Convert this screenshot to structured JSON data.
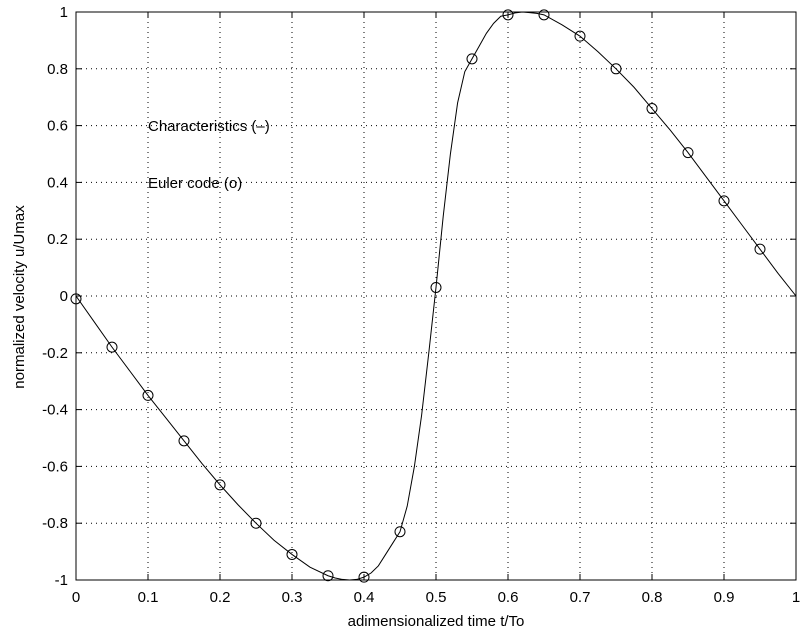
{
  "chart_data": {
    "type": "line",
    "title": "",
    "xlabel": "adimensionalized time t/To",
    "ylabel": "normalized velocity u/Umax",
    "xlim": [
      0,
      1
    ],
    "ylim": [
      -1,
      1
    ],
    "grid": true,
    "x_ticks": [
      "0",
      "0.1",
      "0.2",
      "0.3",
      "0.4",
      "0.5",
      "0.6",
      "0.7",
      "0.8",
      "0.9",
      "1"
    ],
    "y_ticks": [
      "-1",
      "-0.8",
      "-0.6",
      "-0.4",
      "-0.2",
      "0",
      "0.2",
      "0.4",
      "0.6",
      "0.8",
      "1"
    ],
    "annotations": [
      "Characteristics (–)",
      "Euler code (o)"
    ],
    "series": [
      {
        "style": "solid line",
        "x": [
          0,
          0.025,
          0.05,
          0.075,
          0.1,
          0.125,
          0.15,
          0.175,
          0.2,
          0.225,
          0.25,
          0.275,
          0.3,
          0.325,
          0.35,
          0.36,
          0.37,
          0.38,
          0.39,
          0.4,
          0.41,
          0.42,
          0.43,
          0.44,
          0.45,
          0.46,
          0.47,
          0.48,
          0.49,
          0.5,
          0.51,
          0.52,
          0.53,
          0.54,
          0.55,
          0.56,
          0.57,
          0.58,
          0.59,
          0.6,
          0.61,
          0.62,
          0.63,
          0.64,
          0.65,
          0.675,
          0.7,
          0.725,
          0.75,
          0.775,
          0.8,
          0.825,
          0.85,
          0.875,
          0.9,
          0.925,
          0.95,
          0.975,
          1
        ],
        "y": [
          0,
          -0.09,
          -0.18,
          -0.265,
          -0.35,
          -0.43,
          -0.51,
          -0.59,
          -0.665,
          -0.735,
          -0.8,
          -0.86,
          -0.91,
          -0.955,
          -0.985,
          -0.993,
          -0.998,
          -1.0,
          -0.998,
          -0.99,
          -0.975,
          -0.95,
          -0.91,
          -0.87,
          -0.83,
          -0.74,
          -0.6,
          -0.42,
          -0.2,
          0.03,
          0.28,
          0.5,
          0.68,
          0.79,
          0.835,
          0.88,
          0.925,
          0.96,
          0.985,
          0.99,
          0.997,
          1.0,
          0.998,
          0.995,
          0.99,
          0.955,
          0.915,
          0.86,
          0.8,
          0.735,
          0.66,
          0.585,
          0.505,
          0.42,
          0.335,
          0.25,
          0.165,
          0.08,
          0
        ]
      },
      {
        "style": "open circle markers",
        "x": [
          0,
          0.05,
          0.1,
          0.15,
          0.2,
          0.25,
          0.3,
          0.35,
          0.4,
          0.45,
          0.5,
          0.55,
          0.6,
          0.65,
          0.7,
          0.75,
          0.8,
          0.85,
          0.9,
          0.95
        ],
        "y": [
          -0.01,
          -0.18,
          -0.35,
          -0.51,
          -0.665,
          -0.8,
          -0.91,
          -0.985,
          -0.99,
          -0.83,
          0.03,
          0.835,
          0.99,
          0.99,
          0.915,
          0.8,
          0.66,
          0.505,
          0.335,
          0.165
        ]
      }
    ]
  }
}
